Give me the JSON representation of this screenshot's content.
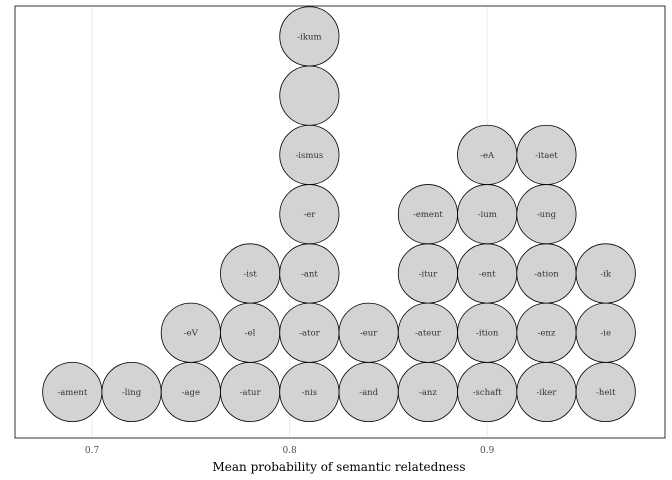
{
  "chart_data": {
    "type": "dotplot",
    "xlabel": "Mean probability of semantic relatedness",
    "ylabel": "",
    "xlim": [
      0.661,
      0.99
    ],
    "x_ticks": [
      0.7,
      0.8,
      0.9
    ],
    "x_tick_labels": [
      "0.7",
      "0.8",
      "0.9"
    ],
    "grid": true,
    "dot_fill": "#d3d3d3",
    "dot_stroke": "#000000",
    "stacks": [
      {
        "x": 0.69,
        "labels": [
          "-ament"
        ]
      },
      {
        "x": 0.72,
        "labels": [
          "-ling"
        ]
      },
      {
        "x": 0.75,
        "labels": [
          "-age",
          "-eV"
        ]
      },
      {
        "x": 0.78,
        "labels": [
          "-atur",
          "-el",
          "-ist"
        ]
      },
      {
        "x": 0.81,
        "labels": [
          "-nis",
          "-ator",
          "-ant",
          "-er",
          "-ismus",
          "",
          "-ikum"
        ]
      },
      {
        "x": 0.84,
        "labels": [
          "-and",
          "-eur"
        ]
      },
      {
        "x": 0.87,
        "labels": [
          "-anz",
          "-ateur",
          "-itur",
          "-ement"
        ]
      },
      {
        "x": 0.9,
        "labels": [
          "-schaft",
          "-ition",
          "-ent",
          "-ium",
          "-eA"
        ]
      },
      {
        "x": 0.93,
        "labels": [
          "-iker",
          "-enz",
          "-ation",
          "-ung",
          "-itaet"
        ]
      },
      {
        "x": 0.96,
        "labels": [
          "-heit",
          "-ie",
          "-ik"
        ]
      }
    ]
  }
}
